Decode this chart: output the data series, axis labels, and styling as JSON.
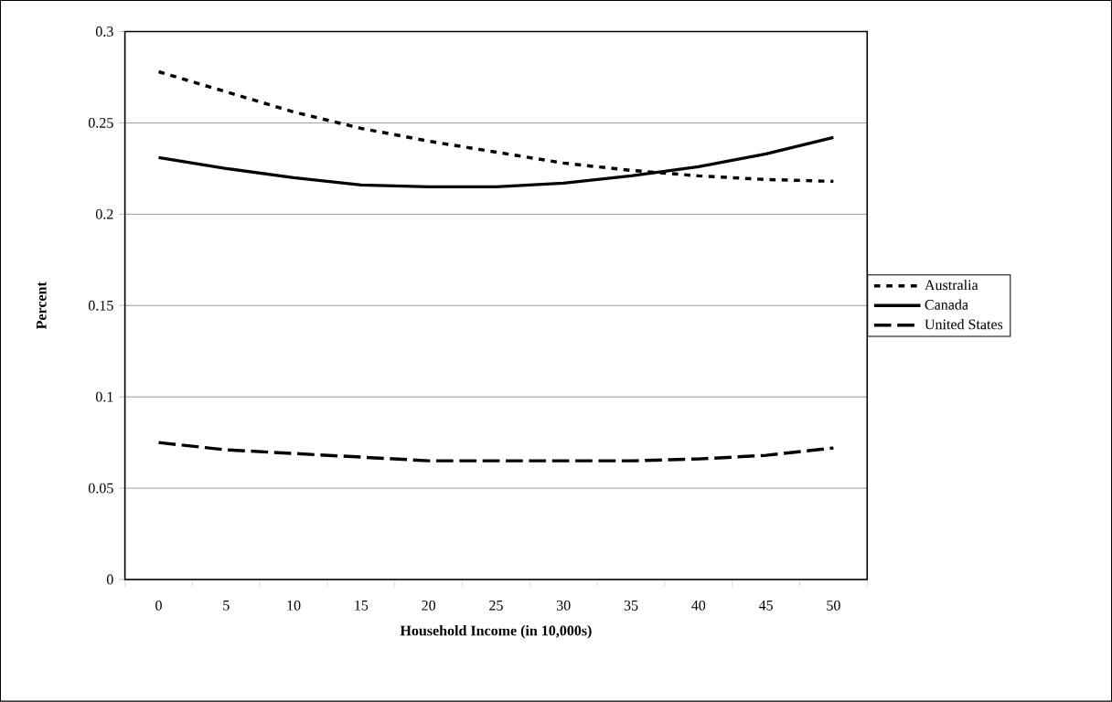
{
  "chart_data": {
    "type": "line",
    "xlabel": "Household Income (in 10,000s)",
    "ylabel": "Percent",
    "categories": [
      "0",
      "5",
      "10",
      "15",
      "20",
      "25",
      "30",
      "35",
      "40",
      "45",
      "50"
    ],
    "series": [
      {
        "name": "Australia",
        "color": "#000000",
        "line_style": "dotted",
        "values": [
          0.278,
          0.267,
          0.256,
          0.247,
          0.24,
          0.234,
          0.228,
          0.224,
          0.221,
          0.219,
          0.218
        ]
      },
      {
        "name": "Canada",
        "color": "#000000",
        "line_style": "solid",
        "values": [
          0.231,
          0.225,
          0.22,
          0.216,
          0.215,
          0.215,
          0.217,
          0.221,
          0.226,
          0.233,
          0.242
        ]
      },
      {
        "name": "United States",
        "color": "#000000",
        "line_style": "dashed",
        "values": [
          0.075,
          0.071,
          0.069,
          0.067,
          0.065,
          0.065,
          0.065,
          0.065,
          0.066,
          0.068,
          0.072
        ]
      }
    ],
    "ylim": [
      0,
      0.3
    ],
    "yticks": [
      0,
      0.05,
      0.1,
      0.15,
      0.2,
      0.25,
      0.3
    ],
    "grid": "y",
    "legend": "right"
  }
}
